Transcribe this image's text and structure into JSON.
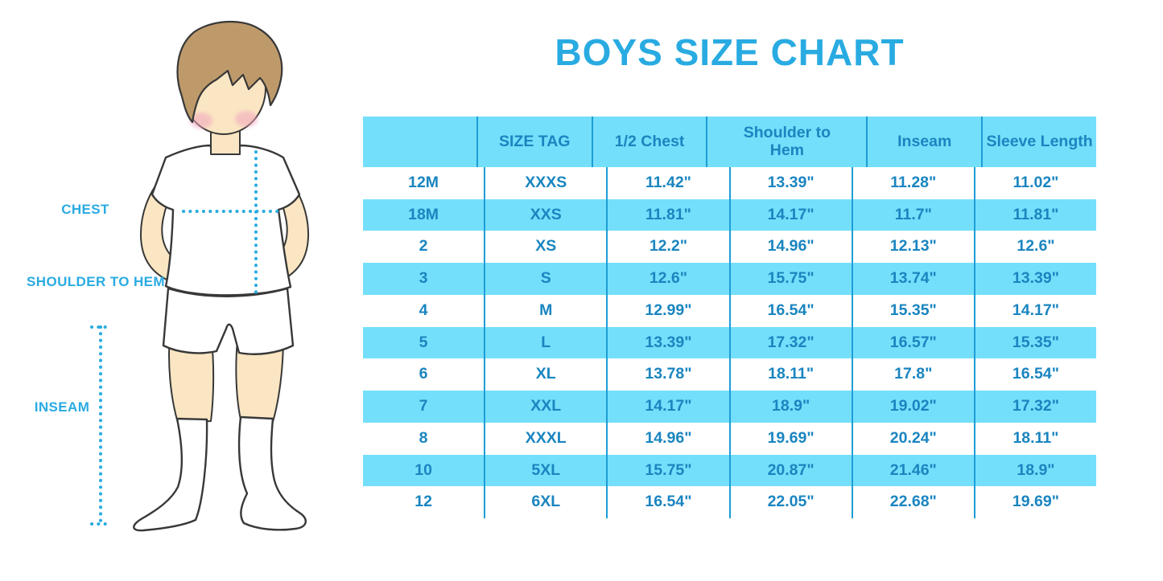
{
  "title": "BOYS SIZE CHART",
  "figure_labels": {
    "chest": "CHEST",
    "shoulder_to_hem": "SHOULDER TO HEM",
    "inseam": "INSEAM"
  },
  "colors": {
    "accent": "#29ABE2",
    "table_text": "#1A85C0",
    "row_blue": "#74DFFA",
    "divider": "#1C9DD6",
    "skin": "#FBE6C3",
    "hair": "#BE9A6B",
    "cheek": "#F0A4BE",
    "outline": "#383838"
  },
  "chart_data": {
    "type": "table",
    "title": "BOYS SIZE CHART",
    "columns": [
      "",
      "SIZE TAG",
      "1/2 Chest",
      "Shoulder to Hem",
      "Inseam",
      "Sleeve Length"
    ],
    "rows": [
      [
        "12M",
        "XXXS",
        "11.42\"",
        "13.39\"",
        "11.28\"",
        "11.02\""
      ],
      [
        "18M",
        "XXS",
        "11.81\"",
        "14.17\"",
        "11.7\"",
        "11.81\""
      ],
      [
        "2",
        "XS",
        "12.2\"",
        "14.96\"",
        "12.13\"",
        "12.6\""
      ],
      [
        "3",
        "S",
        "12.6\"",
        "15.75\"",
        "13.74\"",
        "13.39\""
      ],
      [
        "4",
        "M",
        "12.99\"",
        "16.54\"",
        "15.35\"",
        "14.17\""
      ],
      [
        "5",
        "L",
        "13.39\"",
        "17.32\"",
        "16.57\"",
        "15.35\""
      ],
      [
        "6",
        "XL",
        "13.78\"",
        "18.11\"",
        "17.8\"",
        "16.54\""
      ],
      [
        "7",
        "XXL",
        "14.17\"",
        "18.9\"",
        "19.02\"",
        "17.32\""
      ],
      [
        "8",
        "XXXL",
        "14.96\"",
        "19.69\"",
        "20.24\"",
        "18.11\""
      ],
      [
        "10",
        "5XL",
        "15.75\"",
        "20.87\"",
        "21.46\"",
        "18.9\""
      ],
      [
        "12",
        "6XL",
        "16.54\"",
        "22.05\"",
        "22.68\"",
        "19.69\""
      ]
    ],
    "striped_rows": "header and every second data row are light blue",
    "legend_position": "none",
    "grid": "vertical dividers only"
  }
}
